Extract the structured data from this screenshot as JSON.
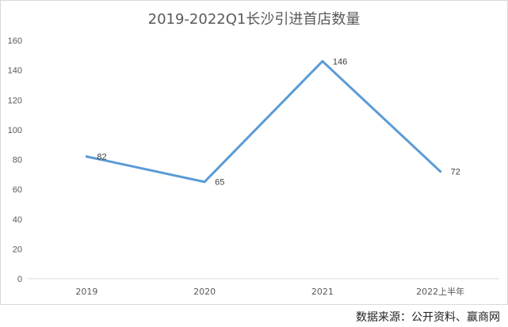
{
  "chart_data": {
    "type": "line",
    "title": "2019-2022Q1长沙引进首店数量",
    "xlabel": "",
    "ylabel": "",
    "categories": [
      "2019",
      "2020",
      "2021",
      "2022上半年"
    ],
    "series": [
      {
        "values": [
          82,
          65,
          146,
          72
        ],
        "data_labels": [
          "82",
          "65",
          "146",
          "72"
        ]
      }
    ],
    "ylim": [
      0,
      160
    ],
    "yticks": [
      0,
      20,
      40,
      60,
      80,
      100,
      120,
      140,
      160
    ],
    "grid": false,
    "legend": "none",
    "colors": {
      "line": "#5b9bd5",
      "axis": "#d9d9d9",
      "text": "#595959"
    }
  },
  "source_note": "数据来源：公开资料、赢商网"
}
